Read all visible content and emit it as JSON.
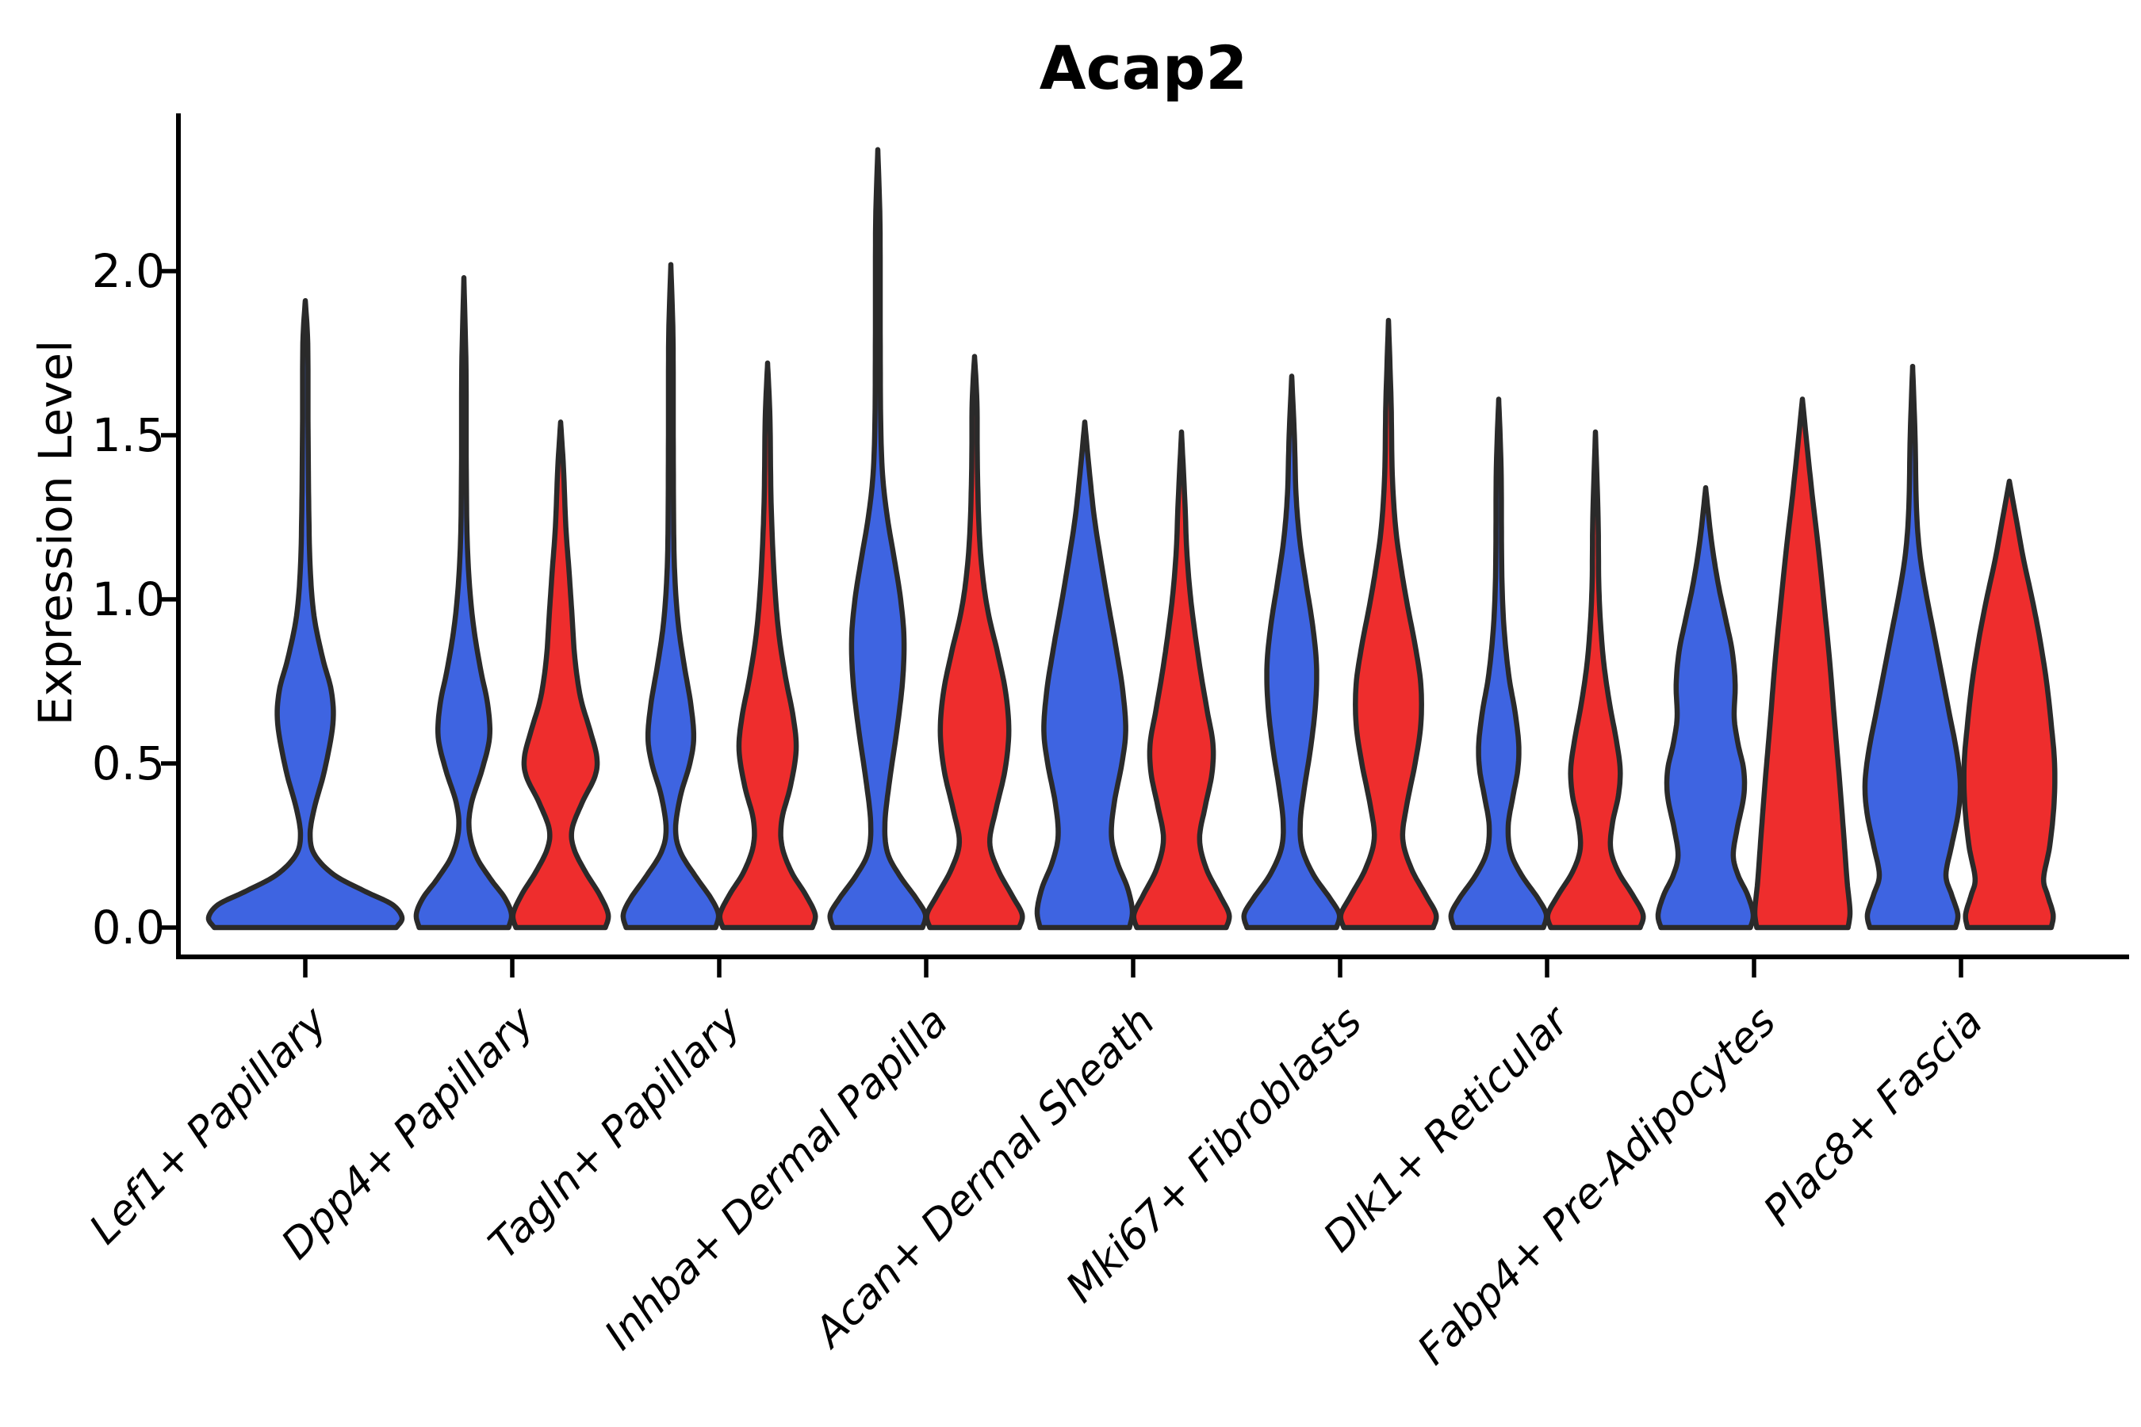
{
  "chart_data": {
    "type": "violin",
    "title": "Acap2",
    "ylabel": "Expression Level",
    "yticks": [
      0.0,
      0.5,
      1.0,
      1.5,
      2.0
    ],
    "ylim_shown": [
      -0.09,
      2.48
    ],
    "grid": false,
    "legend": "none",
    "categories": [
      "Lef1+ Papillary",
      "Dpp4+ Papillary",
      "Tagln+ Papillary",
      "Inhba+ Dermal Papilla",
      "Acan+ Dermal Sheath",
      "Mki67+ Fibroblasts",
      "Dlk1+ Reticular",
      "Fabp4+ Pre-Adipocytes",
      "Plac8+ Fascia"
    ],
    "groups": [
      {
        "name": "blue",
        "color": "#3E64E1"
      },
      {
        "name": "red",
        "color": "#EE2D2D"
      }
    ],
    "outline_color": "#2A2A2A",
    "violins": [
      {
        "category": "Lef1+ Papillary",
        "group": "blue",
        "max": 1.91,
        "profile": [
          [
            0,
            0.94
          ],
          [
            0.03,
            1.0
          ],
          [
            0.07,
            0.9
          ],
          [
            0.11,
            0.62
          ],
          [
            0.16,
            0.3
          ],
          [
            0.22,
            0.1
          ],
          [
            0.28,
            0.05
          ],
          [
            0.36,
            0.09
          ],
          [
            0.48,
            0.2
          ],
          [
            0.62,
            0.285
          ],
          [
            0.72,
            0.27
          ],
          [
            0.82,
            0.18
          ],
          [
            0.95,
            0.09
          ],
          [
            1.1,
            0.05
          ],
          [
            1.3,
            0.035
          ],
          [
            1.55,
            0.028
          ],
          [
            1.78,
            0.025
          ],
          [
            1.91,
            0.0
          ]
        ]
      },
      {
        "category": "Dpp4+ Papillary",
        "group": "blue",
        "max": 1.98,
        "profile": [
          [
            0,
            0.94
          ],
          [
            0.04,
            1.0
          ],
          [
            0.09,
            0.86
          ],
          [
            0.15,
            0.55
          ],
          [
            0.22,
            0.25
          ],
          [
            0.3,
            0.11
          ],
          [
            0.38,
            0.16
          ],
          [
            0.48,
            0.38
          ],
          [
            0.58,
            0.54
          ],
          [
            0.68,
            0.5
          ],
          [
            0.78,
            0.36
          ],
          [
            0.9,
            0.22
          ],
          [
            1.02,
            0.13
          ],
          [
            1.18,
            0.07
          ],
          [
            1.4,
            0.05
          ],
          [
            1.7,
            0.045
          ],
          [
            1.98,
            0.0
          ]
        ]
      },
      {
        "category": "Dpp4+ Papillary",
        "group": "red",
        "max": 1.54,
        "profile": [
          [
            0,
            0.94
          ],
          [
            0.04,
            1.0
          ],
          [
            0.1,
            0.82
          ],
          [
            0.17,
            0.52
          ],
          [
            0.24,
            0.28
          ],
          [
            0.3,
            0.24
          ],
          [
            0.38,
            0.45
          ],
          [
            0.46,
            0.72
          ],
          [
            0.52,
            0.76
          ],
          [
            0.6,
            0.62
          ],
          [
            0.7,
            0.42
          ],
          [
            0.82,
            0.3
          ],
          [
            0.95,
            0.24
          ],
          [
            1.08,
            0.18
          ],
          [
            1.22,
            0.11
          ],
          [
            1.4,
            0.06
          ],
          [
            1.54,
            0.0
          ]
        ]
      },
      {
        "category": "Tagln+ Papillary",
        "group": "blue",
        "max": 2.02,
        "profile": [
          [
            0,
            0.94
          ],
          [
            0.04,
            1.0
          ],
          [
            0.09,
            0.84
          ],
          [
            0.16,
            0.5
          ],
          [
            0.23,
            0.2
          ],
          [
            0.3,
            0.1
          ],
          [
            0.4,
            0.2
          ],
          [
            0.5,
            0.4
          ],
          [
            0.58,
            0.48
          ],
          [
            0.68,
            0.42
          ],
          [
            0.8,
            0.28
          ],
          [
            0.92,
            0.16
          ],
          [
            1.05,
            0.09
          ],
          [
            1.2,
            0.06
          ],
          [
            1.5,
            0.05
          ],
          [
            1.8,
            0.045
          ],
          [
            2.02,
            0.0
          ]
        ]
      },
      {
        "category": "Tagln+ Papillary",
        "group": "red",
        "max": 1.72,
        "profile": [
          [
            0,
            0.94
          ],
          [
            0.04,
            1.0
          ],
          [
            0.1,
            0.8
          ],
          [
            0.17,
            0.5
          ],
          [
            0.25,
            0.3
          ],
          [
            0.33,
            0.3
          ],
          [
            0.43,
            0.48
          ],
          [
            0.54,
            0.6
          ],
          [
            0.64,
            0.54
          ],
          [
            0.76,
            0.38
          ],
          [
            0.88,
            0.25
          ],
          [
            1.0,
            0.17
          ],
          [
            1.15,
            0.11
          ],
          [
            1.32,
            0.07
          ],
          [
            1.55,
            0.05
          ],
          [
            1.72,
            0.0
          ]
        ]
      },
      {
        "category": "Inhba+ Dermal Papilla",
        "group": "blue",
        "max": 2.37,
        "profile": [
          [
            0,
            0.94
          ],
          [
            0.04,
            1.0
          ],
          [
            0.09,
            0.8
          ],
          [
            0.16,
            0.45
          ],
          [
            0.23,
            0.2
          ],
          [
            0.32,
            0.15
          ],
          [
            0.45,
            0.25
          ],
          [
            0.6,
            0.4
          ],
          [
            0.75,
            0.52
          ],
          [
            0.88,
            0.55
          ],
          [
            1.0,
            0.48
          ],
          [
            1.12,
            0.35
          ],
          [
            1.25,
            0.2
          ],
          [
            1.38,
            0.1
          ],
          [
            1.55,
            0.06
          ],
          [
            1.85,
            0.05
          ],
          [
            2.15,
            0.045
          ],
          [
            2.37,
            0.0
          ]
        ]
      },
      {
        "category": "Inhba+ Dermal Papilla",
        "group": "red",
        "max": 1.74,
        "profile": [
          [
            0,
            0.94
          ],
          [
            0.04,
            1.0
          ],
          [
            0.1,
            0.78
          ],
          [
            0.18,
            0.48
          ],
          [
            0.26,
            0.32
          ],
          [
            0.36,
            0.45
          ],
          [
            0.48,
            0.64
          ],
          [
            0.6,
            0.72
          ],
          [
            0.72,
            0.65
          ],
          [
            0.84,
            0.48
          ],
          [
            0.95,
            0.3
          ],
          [
            1.06,
            0.18
          ],
          [
            1.2,
            0.1
          ],
          [
            1.4,
            0.06
          ],
          [
            1.6,
            0.05
          ],
          [
            1.74,
            0.0
          ]
        ]
      },
      {
        "category": "Acan+ Dermal Sheath",
        "group": "blue",
        "max": 1.54,
        "profile": [
          [
            0,
            0.94
          ],
          [
            0.05,
            1.0
          ],
          [
            0.12,
            0.9
          ],
          [
            0.2,
            0.68
          ],
          [
            0.28,
            0.56
          ],
          [
            0.38,
            0.62
          ],
          [
            0.5,
            0.78
          ],
          [
            0.6,
            0.86
          ],
          [
            0.72,
            0.8
          ],
          [
            0.85,
            0.66
          ],
          [
            0.98,
            0.5
          ],
          [
            1.1,
            0.36
          ],
          [
            1.25,
            0.2
          ],
          [
            1.4,
            0.09
          ],
          [
            1.54,
            0.0
          ]
        ]
      },
      {
        "category": "Acan+ Dermal Sheath",
        "group": "red",
        "max": 1.51,
        "profile": [
          [
            0,
            0.94
          ],
          [
            0.04,
            1.0
          ],
          [
            0.1,
            0.8
          ],
          [
            0.18,
            0.52
          ],
          [
            0.27,
            0.38
          ],
          [
            0.37,
            0.5
          ],
          [
            0.47,
            0.64
          ],
          [
            0.56,
            0.66
          ],
          [
            0.66,
            0.54
          ],
          [
            0.78,
            0.4
          ],
          [
            0.9,
            0.28
          ],
          [
            1.02,
            0.18
          ],
          [
            1.15,
            0.11
          ],
          [
            1.3,
            0.07
          ],
          [
            1.51,
            0.0
          ]
        ]
      },
      {
        "category": "Mki67+ Fibroblasts",
        "group": "blue",
        "max": 1.68,
        "profile": [
          [
            0,
            0.94
          ],
          [
            0.04,
            1.0
          ],
          [
            0.09,
            0.8
          ],
          [
            0.16,
            0.46
          ],
          [
            0.24,
            0.22
          ],
          [
            0.32,
            0.18
          ],
          [
            0.42,
            0.26
          ],
          [
            0.55,
            0.4
          ],
          [
            0.68,
            0.5
          ],
          [
            0.8,
            0.52
          ],
          [
            0.92,
            0.44
          ],
          [
            1.05,
            0.3
          ],
          [
            1.18,
            0.17
          ],
          [
            1.32,
            0.09
          ],
          [
            1.5,
            0.055
          ],
          [
            1.68,
            0.0
          ]
        ]
      },
      {
        "category": "Mki67+ Fibroblasts",
        "group": "red",
        "max": 1.85,
        "profile": [
          [
            0,
            0.94
          ],
          [
            0.04,
            1.0
          ],
          [
            0.1,
            0.78
          ],
          [
            0.18,
            0.48
          ],
          [
            0.27,
            0.3
          ],
          [
            0.37,
            0.38
          ],
          [
            0.5,
            0.56
          ],
          [
            0.62,
            0.68
          ],
          [
            0.74,
            0.68
          ],
          [
            0.86,
            0.56
          ],
          [
            0.98,
            0.4
          ],
          [
            1.1,
            0.26
          ],
          [
            1.22,
            0.15
          ],
          [
            1.38,
            0.08
          ],
          [
            1.6,
            0.055
          ],
          [
            1.85,
            0.0
          ]
        ]
      },
      {
        "category": "Dlk1+ Reticular",
        "group": "blue",
        "max": 1.61,
        "profile": [
          [
            0,
            0.94
          ],
          [
            0.04,
            1.0
          ],
          [
            0.09,
            0.82
          ],
          [
            0.16,
            0.48
          ],
          [
            0.23,
            0.25
          ],
          [
            0.31,
            0.2
          ],
          [
            0.4,
            0.3
          ],
          [
            0.48,
            0.4
          ],
          [
            0.56,
            0.42
          ],
          [
            0.66,
            0.34
          ],
          [
            0.76,
            0.22
          ],
          [
            0.88,
            0.13
          ],
          [
            1.0,
            0.08
          ],
          [
            1.15,
            0.06
          ],
          [
            1.4,
            0.05
          ],
          [
            1.61,
            0.0
          ]
        ]
      },
      {
        "category": "Dlk1+ Reticular",
        "group": "red",
        "max": 1.51,
        "profile": [
          [
            0,
            0.94
          ],
          [
            0.04,
            1.0
          ],
          [
            0.1,
            0.78
          ],
          [
            0.17,
            0.48
          ],
          [
            0.24,
            0.32
          ],
          [
            0.32,
            0.36
          ],
          [
            0.4,
            0.48
          ],
          [
            0.48,
            0.52
          ],
          [
            0.57,
            0.44
          ],
          [
            0.68,
            0.3
          ],
          [
            0.8,
            0.18
          ],
          [
            0.92,
            0.11
          ],
          [
            1.05,
            0.07
          ],
          [
            1.25,
            0.055
          ],
          [
            1.51,
            0.0
          ]
        ]
      },
      {
        "category": "Fabp4+ Pre-Adipocytes",
        "group": "blue",
        "max": 1.34,
        "profile": [
          [
            0,
            0.94
          ],
          [
            0.04,
            1.0
          ],
          [
            0.1,
            0.88
          ],
          [
            0.16,
            0.68
          ],
          [
            0.22,
            0.58
          ],
          [
            0.3,
            0.66
          ],
          [
            0.4,
            0.8
          ],
          [
            0.48,
            0.8
          ],
          [
            0.56,
            0.68
          ],
          [
            0.64,
            0.6
          ],
          [
            0.74,
            0.62
          ],
          [
            0.84,
            0.56
          ],
          [
            0.94,
            0.42
          ],
          [
            1.05,
            0.26
          ],
          [
            1.18,
            0.12
          ],
          [
            1.34,
            0.0
          ]
        ]
      },
      {
        "category": "Fabp4+ Pre-Adipocytes",
        "group": "red",
        "max": 1.61,
        "profile": [
          [
            0,
            0.96
          ],
          [
            0.05,
            1.0
          ],
          [
            0.14,
            0.94
          ],
          [
            0.28,
            0.87
          ],
          [
            0.45,
            0.78
          ],
          [
            0.62,
            0.68
          ],
          [
            0.8,
            0.58
          ],
          [
            0.98,
            0.46
          ],
          [
            1.15,
            0.34
          ],
          [
            1.3,
            0.22
          ],
          [
            1.45,
            0.11
          ],
          [
            1.61,
            0.0
          ]
        ]
      },
      {
        "category": "Plac8+ Fascia",
        "group": "blue",
        "max": 1.71,
        "profile": [
          [
            0,
            0.9
          ],
          [
            0.04,
            0.95
          ],
          [
            0.1,
            0.82
          ],
          [
            0.16,
            0.7
          ],
          [
            0.25,
            0.82
          ],
          [
            0.35,
            0.96
          ],
          [
            0.44,
            1.0
          ],
          [
            0.54,
            0.92
          ],
          [
            0.66,
            0.76
          ],
          [
            0.78,
            0.6
          ],
          [
            0.9,
            0.44
          ],
          [
            1.02,
            0.28
          ],
          [
            1.14,
            0.15
          ],
          [
            1.28,
            0.08
          ],
          [
            1.5,
            0.05
          ],
          [
            1.71,
            0.0
          ]
        ]
      },
      {
        "category": "Plac8+ Fascia",
        "group": "red",
        "max": 1.36,
        "profile": [
          [
            0,
            0.88
          ],
          [
            0.04,
            0.92
          ],
          [
            0.1,
            0.8
          ],
          [
            0.15,
            0.72
          ],
          [
            0.25,
            0.85
          ],
          [
            0.38,
            0.94
          ],
          [
            0.5,
            0.95
          ],
          [
            0.62,
            0.88
          ],
          [
            0.75,
            0.78
          ],
          [
            0.88,
            0.64
          ],
          [
            1.0,
            0.48
          ],
          [
            1.12,
            0.3
          ],
          [
            1.24,
            0.15
          ],
          [
            1.36,
            0.0
          ]
        ]
      }
    ]
  },
  "style": {
    "background": "#FFFFFF",
    "axis_color": "#000000",
    "violin_outline": "#2A2A2A"
  }
}
